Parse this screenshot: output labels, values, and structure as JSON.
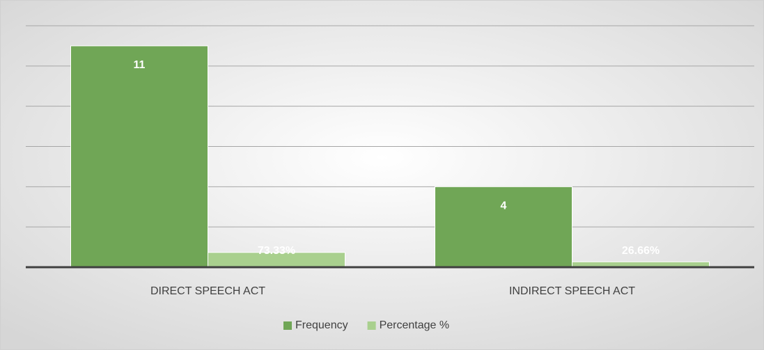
{
  "chart_data": {
    "type": "bar",
    "categories": [
      "DIRECT SPEECH ACT",
      "INDIRECT SPEECH ACT"
    ],
    "series": [
      {
        "name": "Frequency",
        "color": "#70a656",
        "values": [
          11,
          4
        ]
      },
      {
        "name": "Percentage %",
        "color": "#a9d08e",
        "values": [
          0.7333,
          0.2666
        ],
        "value_labels": [
          "73.33%",
          "26.66%"
        ]
      }
    ],
    "ylim": [
      0,
      12
    ],
    "yticks": [
      0,
      2,
      4,
      6,
      8,
      10,
      12
    ],
    "grid": true,
    "legend": "bottom"
  }
}
